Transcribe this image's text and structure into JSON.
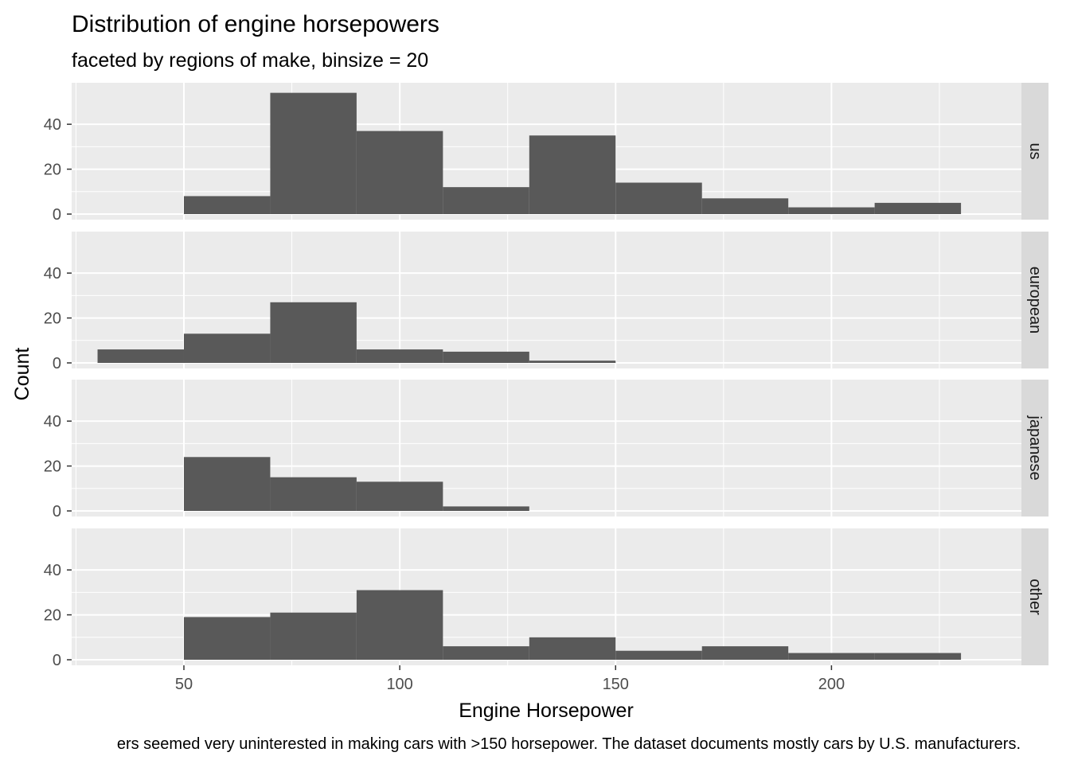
{
  "chart_data": {
    "type": "bar",
    "title": "Distribution of engine horsepowers",
    "subtitle": "faceted by regions of make, binsize = 20",
    "xlabel": "Engine Horsepower",
    "ylabel": "Count",
    "caption": "ers seemed very uninterested in making cars with >150 horsepower. The dataset documents mostly cars by U.S. manufacturers.",
    "binwidth": 20,
    "xlim": [
      24,
      244
    ],
    "ylim": [
      0,
      56
    ],
    "x_ticks": [
      50,
      100,
      150,
      200
    ],
    "y_ticks": [
      0,
      20,
      40
    ],
    "grid": true,
    "facets": [
      {
        "label": "us",
        "bins": [
          {
            "x0": 50,
            "x1": 70,
            "count": 8
          },
          {
            "x0": 70,
            "x1": 90,
            "count": 54
          },
          {
            "x0": 90,
            "x1": 110,
            "count": 37
          },
          {
            "x0": 110,
            "x1": 130,
            "count": 12
          },
          {
            "x0": 130,
            "x1": 150,
            "count": 35
          },
          {
            "x0": 150,
            "x1": 170,
            "count": 14
          },
          {
            "x0": 170,
            "x1": 190,
            "count": 7
          },
          {
            "x0": 190,
            "x1": 210,
            "count": 3
          },
          {
            "x0": 210,
            "x1": 230,
            "count": 5
          }
        ]
      },
      {
        "label": "european",
        "bins": [
          {
            "x0": 30,
            "x1": 50,
            "count": 6
          },
          {
            "x0": 50,
            "x1": 70,
            "count": 13
          },
          {
            "x0": 70,
            "x1": 90,
            "count": 27
          },
          {
            "x0": 90,
            "x1": 110,
            "count": 6
          },
          {
            "x0": 110,
            "x1": 130,
            "count": 5
          },
          {
            "x0": 130,
            "x1": 150,
            "count": 1
          }
        ]
      },
      {
        "label": "japanese",
        "bins": [
          {
            "x0": 50,
            "x1": 70,
            "count": 24
          },
          {
            "x0": 70,
            "x1": 90,
            "count": 15
          },
          {
            "x0": 90,
            "x1": 110,
            "count": 13
          },
          {
            "x0": 110,
            "x1": 130,
            "count": 2
          }
        ]
      },
      {
        "label": "other",
        "bins": [
          {
            "x0": 50,
            "x1": 70,
            "count": 19
          },
          {
            "x0": 70,
            "x1": 90,
            "count": 21
          },
          {
            "x0": 90,
            "x1": 110,
            "count": 31
          },
          {
            "x0": 110,
            "x1": 130,
            "count": 6
          },
          {
            "x0": 130,
            "x1": 150,
            "count": 10
          },
          {
            "x0": 150,
            "x1": 170,
            "count": 4
          },
          {
            "x0": 170,
            "x1": 190,
            "count": 6
          },
          {
            "x0": 190,
            "x1": 210,
            "count": 3
          },
          {
            "x0": 210,
            "x1": 230,
            "count": 3
          }
        ]
      }
    ],
    "colors": {
      "bar": "#595959",
      "panel": "#ebebeb",
      "strip": "#d9d9d9",
      "grid": "#ffffff"
    }
  }
}
